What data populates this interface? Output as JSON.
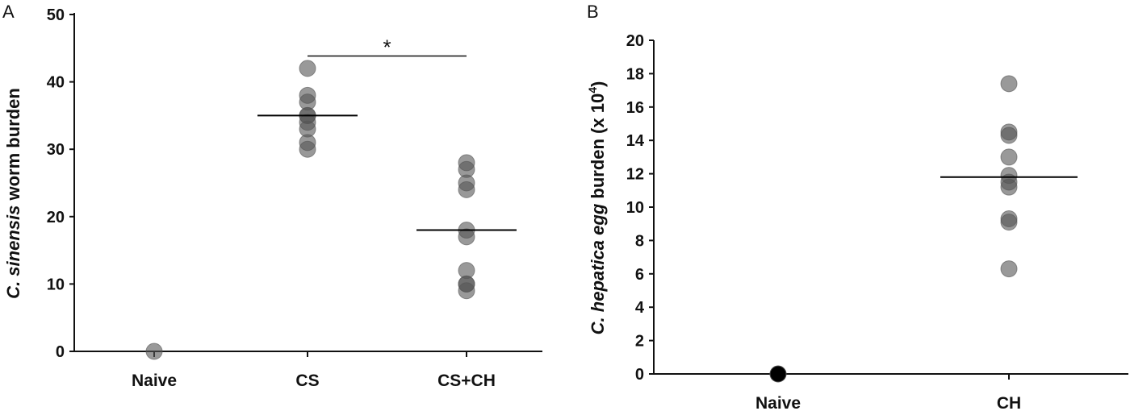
{
  "chart_data": [
    {
      "panel": "A",
      "type": "scatter",
      "ylabel_italic": "C. sinensis",
      "ylabel_rest": "worm burden",
      "categories": [
        "Naive",
        "CS",
        "CS+CH"
      ],
      "ylim": [
        0,
        50
      ],
      "yticks": [
        0,
        10,
        20,
        30,
        40,
        50
      ],
      "series": [
        {
          "category": "Naive",
          "values": [
            0
          ]
        },
        {
          "category": "CS",
          "values": [
            42,
            38,
            37,
            35,
            35,
            34,
            33,
            31,
            30
          ]
        },
        {
          "category": "CS+CH",
          "values": [
            28,
            27,
            25,
            24,
            18,
            17,
            12,
            10,
            10,
            9
          ]
        }
      ],
      "means": [
        null,
        35,
        18
      ],
      "significance": {
        "from": "CS",
        "to": "CS+CH",
        "label": "*",
        "y": 46
      }
    },
    {
      "panel": "B",
      "type": "scatter",
      "ylabel_italic": "C. hepatica egg",
      "ylabel_rest": "burden (x 10",
      "ylabel_sup": "4",
      "ylabel_end": ")",
      "categories": [
        "Naive",
        "CH"
      ],
      "ylim": [
        0,
        20
      ],
      "yticks": [
        0,
        2,
        4,
        6,
        8,
        10,
        12,
        14,
        16,
        18,
        20
      ],
      "series": [
        {
          "category": "Naive",
          "values": [
            0
          ]
        },
        {
          "category": "CH",
          "values": [
            17.4,
            14.5,
            14.3,
            13,
            11.9,
            11.5,
            11.2,
            9.3,
            9.1,
            6.3
          ]
        }
      ],
      "means": [
        null,
        11.8
      ]
    }
  ]
}
